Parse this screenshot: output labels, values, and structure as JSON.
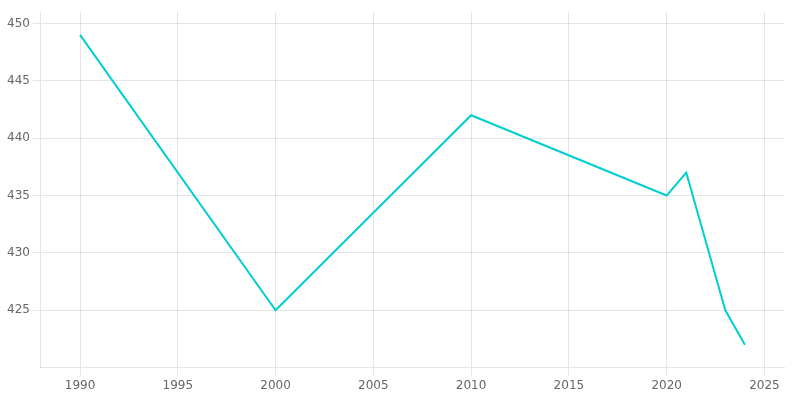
{
  "chart_data": {
    "type": "line",
    "x": [
      1990,
      2000,
      2010,
      2020,
      2021,
      2023,
      2024
    ],
    "values": [
      449,
      425,
      442,
      435,
      437,
      425,
      422
    ],
    "color": "#00CED1",
    "xlim": [
      1988,
      2026
    ],
    "xticks": [
      1990,
      1995,
      2000,
      2005,
      2010,
      2015,
      2020,
      2025
    ],
    "ylim": [
      420,
      451
    ],
    "yticks": [
      425,
      430,
      435,
      440,
      445,
      450
    ],
    "grid": true
  }
}
